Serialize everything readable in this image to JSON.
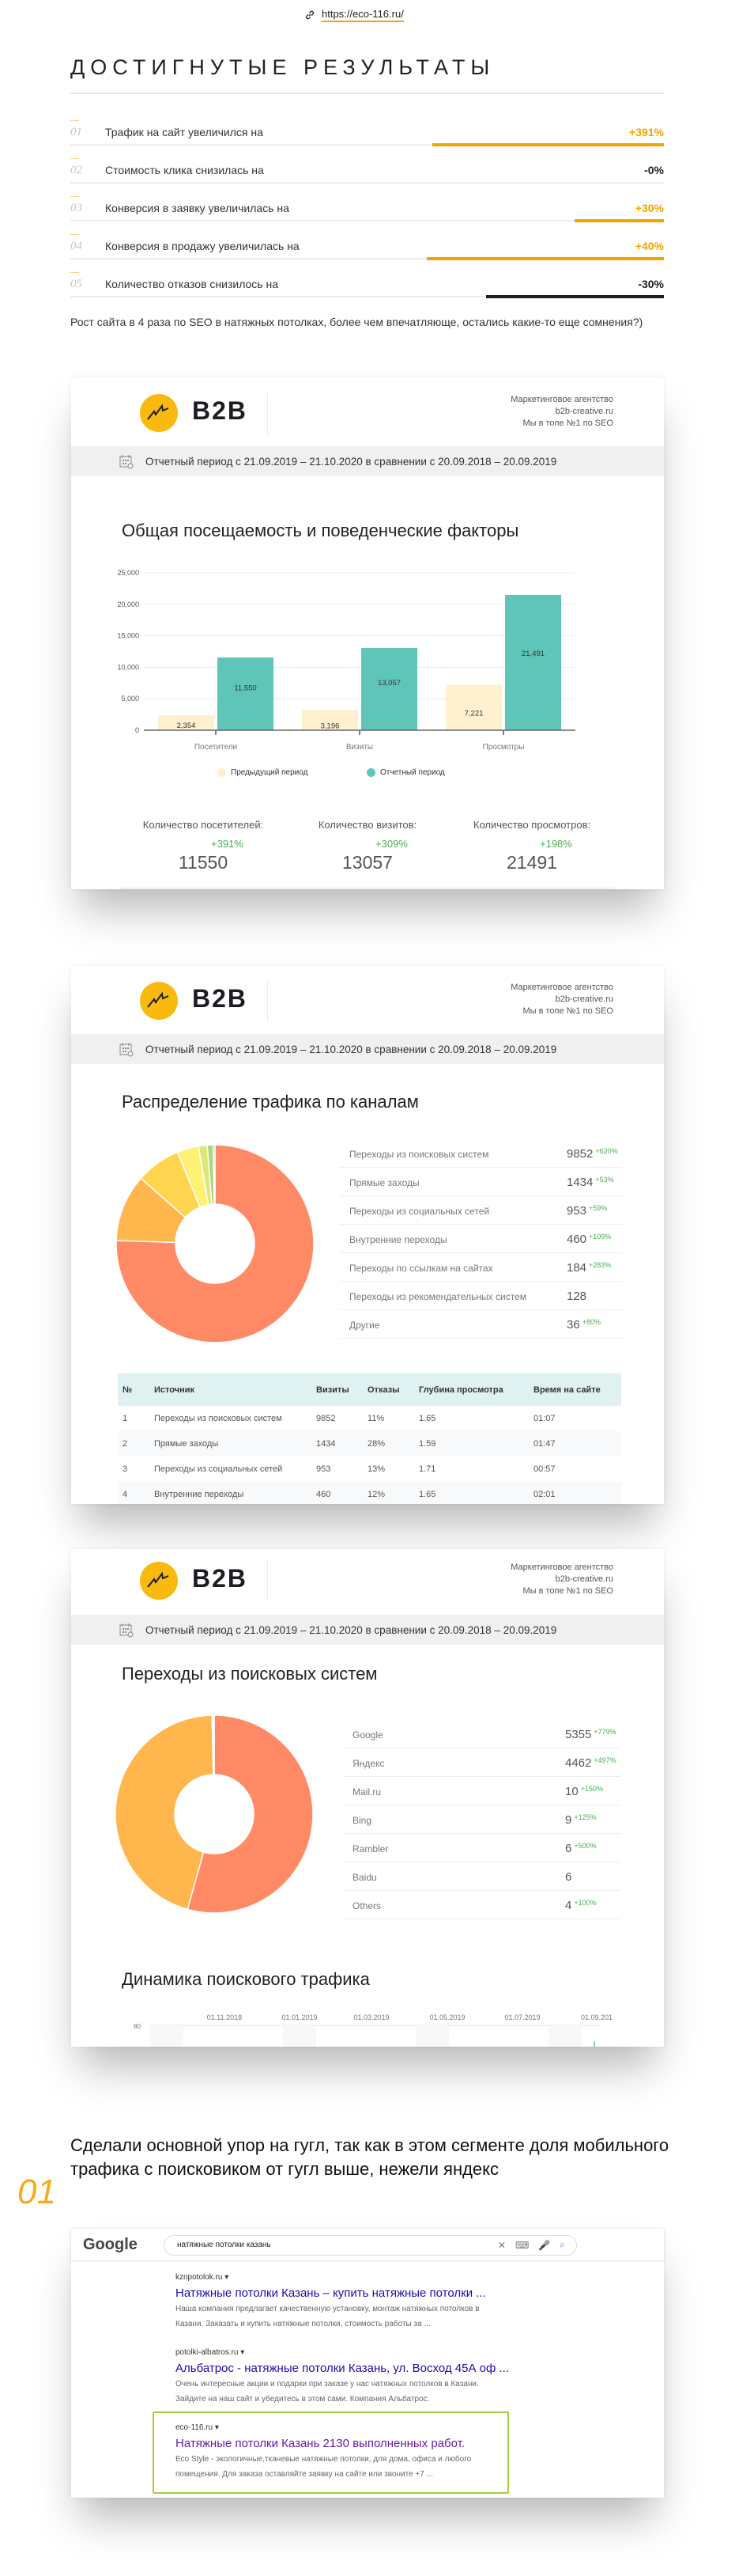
{
  "link": {
    "icon": "link-icon",
    "url": "https://eco-116.ru/"
  },
  "results": {
    "title": "ДОСТИГНУТЫЕ РЕЗУЛЬТАТЫ",
    "rows": [
      {
        "num": "01",
        "label": "Трафик на сайт увеличился на",
        "value": "+391%",
        "color": "#f5a300",
        "bar_fill_pct": 39
      },
      {
        "num": "02",
        "label": "Стоимость клика снизилась на",
        "value": "-0%",
        "color": "#222222",
        "bar_fill_pct": 0
      },
      {
        "num": "03",
        "label": "Конверсия в заявку увеличилась на",
        "value": "+30%",
        "color": "#f5a300",
        "bar_fill_pct": 15
      },
      {
        "num": "04",
        "label": "Конверсия в продажу увеличилась на",
        "value": "+40%",
        "color": "#f5a300",
        "bar_fill_pct": 40
      },
      {
        "num": "05",
        "label": "Количество отказов снизилось на",
        "value": "-30%",
        "color": "#1c1c22",
        "bar_fill_pct": 30
      }
    ],
    "note": "Рост сайта в 4 раза по SEO в натяжных потолках, более чем впечатляюще, остались какие-то еще сомнения?)"
  },
  "report_header": {
    "brand": "B2B",
    "agency_lines": [
      "Маркетинговое агентство",
      "b2b-creative.ru",
      "Мы в топе №1 по SEO"
    ],
    "period": "Отчетный период с 21.09.2019 – 21.10.2020 в сравнении с 20.09.2018 – 20.09.2019",
    "calendar_icon": "calendar-icon"
  },
  "card1": {
    "title": "Общая посещаемость и поведенческие факторы",
    "stats": [
      {
        "label": "Количество посетителей:",
        "value": "11550",
        "change": "+391%"
      },
      {
        "label": "Количество визитов:",
        "value": "13057",
        "change": "+309%"
      },
      {
        "label": "Количество просмотров:",
        "value": "21491",
        "change": "+198%"
      }
    ]
  },
  "card2": {
    "title": "Распределение трафика по каналам",
    "channels": [
      {
        "name": "Переходы из поисковых систем",
        "value": "9852",
        "change": "+620%"
      },
      {
        "name": "Прямые заходы",
        "value": "1434",
        "change": "+53%"
      },
      {
        "name": "Переходы из социальных сетей",
        "value": "953",
        "change": "+59%"
      },
      {
        "name": "Внутренние переходы",
        "value": "460",
        "change": "+109%"
      },
      {
        "name": "Переходы по ссылкам на сайтах",
        "value": "184",
        "change": "+283%"
      },
      {
        "name": "Переходы из рекомендательных систем",
        "value": "128",
        "change": ""
      },
      {
        "name": "Другие",
        "value": "36",
        "change": "+80%"
      }
    ],
    "table": {
      "headers": [
        "№",
        "Источник",
        "Визиты",
        "Отказы",
        "Глубина просмотра",
        "Время на сайте"
      ],
      "rows": [
        [
          "1",
          "Переходы из поисковых систем",
          "9852",
          "11%",
          "1.65",
          "01:07"
        ],
        [
          "2",
          "Прямые заходы",
          "1434",
          "28%",
          "1.59",
          "01:47"
        ],
        [
          "3",
          "Переходы из социальных сетей",
          "953",
          "13%",
          "1.71",
          "00:57"
        ],
        [
          "4",
          "Внутренние переходы",
          "460",
          "12%",
          "1.65",
          "02:01"
        ]
      ]
    }
  },
  "card3": {
    "title": "Переходы из поисковых систем",
    "engines": [
      {
        "name": "Google",
        "value": "5355",
        "change": "+779%"
      },
      {
        "name": "Яндекс",
        "value": "4462",
        "change": "+497%"
      },
      {
        "name": "Mail.ru",
        "value": "10",
        "change": "+150%"
      },
      {
        "name": "Bing",
        "value": "9",
        "change": "+125%"
      },
      {
        "name": "Rambler",
        "value": "6",
        "change": "+500%"
      },
      {
        "name": "Baidu",
        "value": "6",
        "change": ""
      },
      {
        "name": "Others",
        "value": "4",
        "change": "+100%"
      }
    ],
    "title2": "Динамика поискового трафика"
  },
  "chart_data": [
    {
      "type": "bar",
      "categories": [
        "Посетители",
        "Визиты",
        "Просмотры"
      ],
      "series": [
        {
          "name": "Предыдущий период",
          "values": [
            2354,
            3196,
            7221
          ],
          "labels": [
            "2,354",
            "3,196",
            "7,221"
          ],
          "color": "#fff1cf"
        },
        {
          "name": "Отчетный период",
          "values": [
            11550,
            13057,
            21491
          ],
          "labels": [
            "11,550",
            "13,057",
            "21,491"
          ],
          "color": "#5fc5b8"
        }
      ],
      "yticks": [
        "0",
        "5,000",
        "10,000",
        "15,000",
        "20,000",
        "25,000"
      ],
      "ylim": [
        0,
        25000
      ],
      "grid": true,
      "legend": "bottom"
    },
    {
      "type": "pie",
      "donut": true,
      "labels": [
        "Переходы из поисковых систем",
        "Прямые заходы",
        "Переходы из социальных сетей",
        "Внутренние переходы",
        "Переходы по ссылкам на сайтах",
        "Переходы из рекомендательных систем",
        "Другие"
      ],
      "values": [
        9852,
        1434,
        953,
        460,
        184,
        128,
        36
      ],
      "colors": [
        "#ff8a65",
        "#ffb74d",
        "#ffd54f",
        "#fff176",
        "#dce775",
        "#aed581",
        "#81c784"
      ]
    },
    {
      "type": "pie",
      "donut": true,
      "labels": [
        "Google",
        "Яндекс",
        "Mail.ru",
        "Bing",
        "Rambler",
        "Baidu",
        "Others"
      ],
      "values": [
        5355,
        4462,
        10,
        9,
        6,
        6,
        4
      ],
      "colors": [
        "#ff8a65",
        "#ffb74d",
        "#ffd54f",
        "#fff176",
        "#dce775",
        "#aed581",
        "#81c784"
      ]
    },
    {
      "type": "line",
      "xticks": [
        "01.11.2018",
        "01.01.2019",
        "01.03.2019",
        "01.05.2019",
        "01.07.2019",
        "01.09.201"
      ],
      "yticks": [
        "80"
      ]
    }
  ],
  "section": {
    "number": "01",
    "heading": "Сделали основной упор на гугл, так как в этом сегменте доля мобильного трафика с поисковиком от гугл выше, нежели яндекс"
  },
  "google": {
    "logo": "Google",
    "query": "натяжные потолки казань",
    "results": [
      {
        "url": "kznpotolok.ru",
        "title": "Натяжные потолки Казань – купить натяжные потолки ...",
        "desc1": "Наша компания предлагает качественную установку, монтаж натяжных потолков в",
        "desc2": "Казани. Заказать и купить натяжные потолки, стоимость работы за ..."
      },
      {
        "url": "potolki-albatros.ru",
        "title": "Альбатрос - натяжные потолки Казань, ул. Восход 45А оф ...",
        "desc1": "Очень интересные акции и подарки при заказе у нас натяжных потолков в Казани.",
        "desc2": "Зайдите на наш сайт и убедитесь в этом сами. Компания Альбатрос."
      },
      {
        "url": "eco-116.ru",
        "title": "Натяжные потолки Казань 2130 выполненных работ.",
        "desc1": "Eco Style - экологичные,тканевые натяжные потолки, для дома, офиса и любого",
        "desc2": "помещения. Для заказа оставляйте заявку на сайте или звоните +7 ..."
      }
    ],
    "highlight_color": "#a6cc45"
  }
}
